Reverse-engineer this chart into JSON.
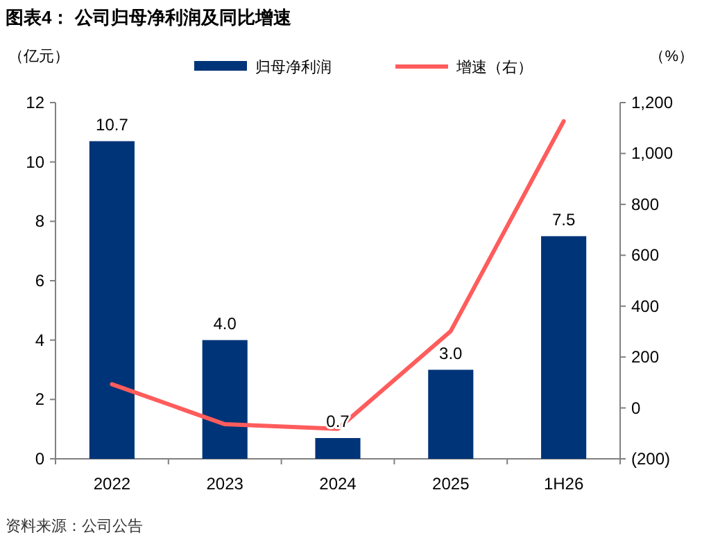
{
  "chart_data": {
    "type": "bar",
    "title": "图表4：  公司归母净利润及同比增速",
    "ylabel": "（亿元）",
    "y2label": "（%）",
    "categories": [
      "2022",
      "2023",
      "2024",
      "2025",
      "1H26"
    ],
    "series": [
      {
        "name": "归母净利润",
        "color": "#003478",
        "values": [
          10.7,
          4.0,
          0.7,
          3.0,
          7.5
        ],
        "value_labels": [
          "10.7",
          "4.0",
          "0.7",
          "3.0",
          "7.5"
        ]
      },
      {
        "name": "增速（右）",
        "type": "line",
        "axis": "y2",
        "color": "#ff5c5c",
        "values": [
          93,
          -64,
          -82,
          302,
          1127
        ]
      }
    ],
    "ylim": [
      0,
      12
    ],
    "yticks": [
      0,
      2,
      4,
      6,
      8,
      10,
      12
    ],
    "y2lim": [
      -200,
      1200
    ],
    "y2ticks": [
      {
        "value": -200,
        "label": "(200)"
      },
      0,
      200,
      400,
      600,
      800,
      {
        "value": 1000,
        "label": "1,000"
      },
      {
        "value": 1200,
        "label": "1,200"
      }
    ],
    "legend": "top",
    "grid": false,
    "marker": "none",
    "line_style": "solid",
    "annotations": [
      "资料来源：公司公告"
    ]
  }
}
